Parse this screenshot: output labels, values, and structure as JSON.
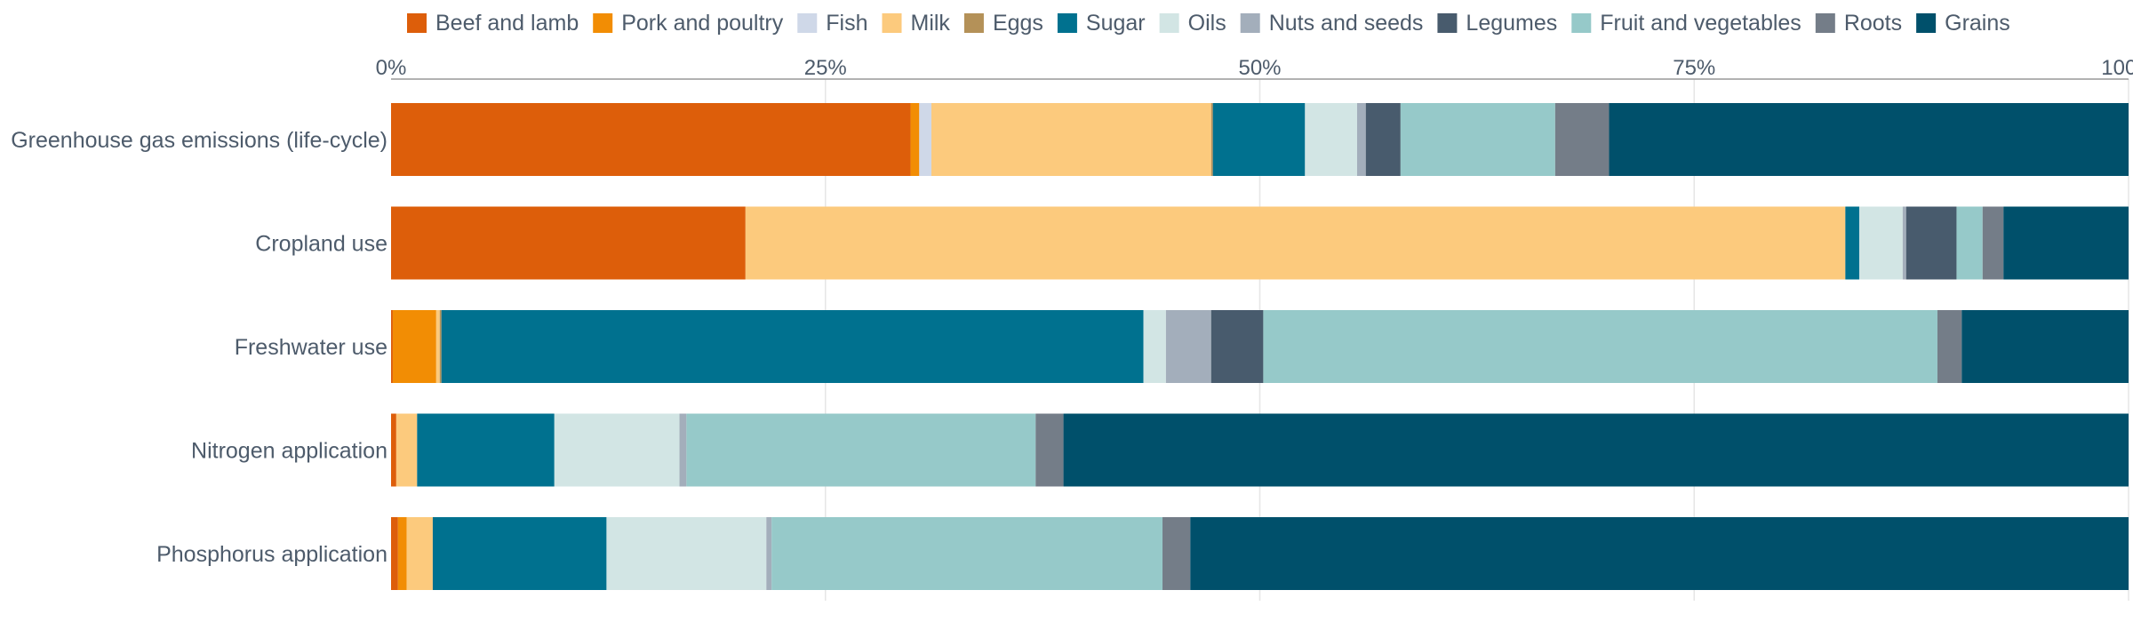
{
  "chart_data": {
    "type": "bar",
    "orientation": "horizontal",
    "stacked": true,
    "categories": [
      "Greenhouse gas emissions (life-cycle)",
      "Cropland use",
      "Freshwater use",
      "Nitrogen application",
      "Phosphorus application"
    ],
    "series": [
      {
        "name": "Beef and lamb",
        "color": "#dd5e0a",
        "values": [
          29.9,
          20.4,
          0.1,
          0.3,
          0.4
        ]
      },
      {
        "name": "Pork and poultry",
        "color": "#f28d04",
        "values": [
          0.5,
          0.0,
          2.5,
          0.0,
          0.5
        ]
      },
      {
        "name": "Fish",
        "color": "#cfd8e8",
        "values": [
          0.7,
          0.0,
          0.0,
          0.0,
          0.0
        ]
      },
      {
        "name": "Milk",
        "color": "#fcca7d",
        "values": [
          16.1,
          63.3,
          0.2,
          1.2,
          1.5
        ]
      },
      {
        "name": "Eggs",
        "color": "#b49158",
        "values": [
          0.1,
          0.0,
          0.1,
          0.0,
          0.0
        ]
      },
      {
        "name": "Sugar",
        "color": "#00718f",
        "values": [
          5.3,
          0.8,
          40.4,
          7.9,
          10.0
        ]
      },
      {
        "name": "Oils",
        "color": "#d2e5e4",
        "values": [
          3.0,
          2.5,
          1.3,
          7.2,
          9.2
        ]
      },
      {
        "name": "Nuts and seeds",
        "color": "#a3aebb",
        "values": [
          0.5,
          0.2,
          2.6,
          0.4,
          0.3
        ]
      },
      {
        "name": "Legumes",
        "color": "#485b6d",
        "values": [
          2.0,
          2.9,
          3.0,
          0.0,
          0.0
        ]
      },
      {
        "name": "Fruit and vegetables",
        "color": "#96c9c9",
        "values": [
          8.9,
          1.5,
          38.8,
          20.1,
          22.5
        ]
      },
      {
        "name": "Roots",
        "color": "#747d88",
        "values": [
          3.1,
          1.2,
          1.4,
          1.6,
          1.6
        ]
      },
      {
        "name": "Grains",
        "color": "#00506b",
        "values": [
          29.9,
          7.2,
          9.6,
          61.3,
          54.0
        ]
      }
    ],
    "xlim": [
      0,
      100
    ],
    "x_ticks": [
      0,
      25,
      50,
      75,
      100
    ],
    "x_tick_labels": [
      "0%",
      "25%",
      "50%",
      "75%",
      "100%"
    ],
    "x_axis_position": "top",
    "legend_position": "top",
    "grid": true
  }
}
